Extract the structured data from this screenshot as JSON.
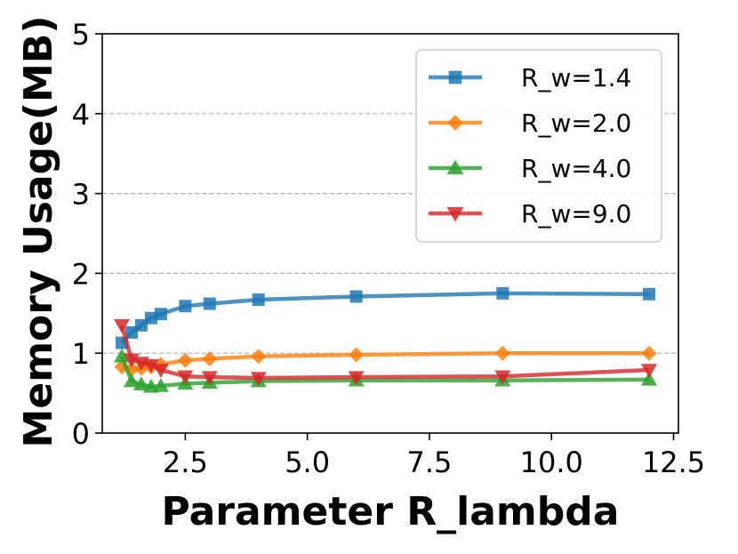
{
  "chart_data": {
    "type": "line",
    "title": "",
    "xlabel": "Parameter R_lambda",
    "ylabel": "Memory Usage(MB)",
    "xlim": [
      0.8,
      12.6
    ],
    "ylim": [
      0,
      5
    ],
    "xticks": [
      2.5,
      5.0,
      7.5,
      10.0,
      12.5
    ],
    "xtick_labels": [
      "2.5",
      "5.0",
      "7.5",
      "10.0",
      "12.5"
    ],
    "yticks": [
      0,
      1,
      2,
      3,
      4,
      5
    ],
    "ytick_labels": [
      "0",
      "1",
      "2",
      "3",
      "4",
      "5"
    ],
    "grid": "horizontal-dashed",
    "legend_position": "top-right",
    "x": [
      1.2,
      1.4,
      1.6,
      1.8,
      2.0,
      2.5,
      3.0,
      4.0,
      6.0,
      9.0,
      12.0
    ],
    "series": [
      {
        "name": "R_w=1.4",
        "color": "#1f77b4",
        "marker": "square",
        "values": [
          1.13,
          1.26,
          1.35,
          1.44,
          1.49,
          1.59,
          1.62,
          1.67,
          1.71,
          1.75,
          1.74
        ]
      },
      {
        "name": "R_w=2.0",
        "color": "#ff7f0e",
        "marker": "diamond",
        "values": [
          0.83,
          0.8,
          0.81,
          0.83,
          0.86,
          0.91,
          0.93,
          0.96,
          0.98,
          1.0,
          1.0
        ]
      },
      {
        "name": "R_w=4.0",
        "color": "#2ca02c",
        "marker": "triangle-up",
        "values": [
          0.96,
          0.65,
          0.61,
          0.58,
          0.59,
          0.62,
          0.63,
          0.65,
          0.66,
          0.66,
          0.67
        ]
      },
      {
        "name": "R_w=9.0",
        "color": "#d62728",
        "marker": "triangle-down",
        "values": [
          1.35,
          0.92,
          0.88,
          0.85,
          0.79,
          0.71,
          0.7,
          0.69,
          0.7,
          0.71,
          0.79
        ]
      }
    ]
  }
}
